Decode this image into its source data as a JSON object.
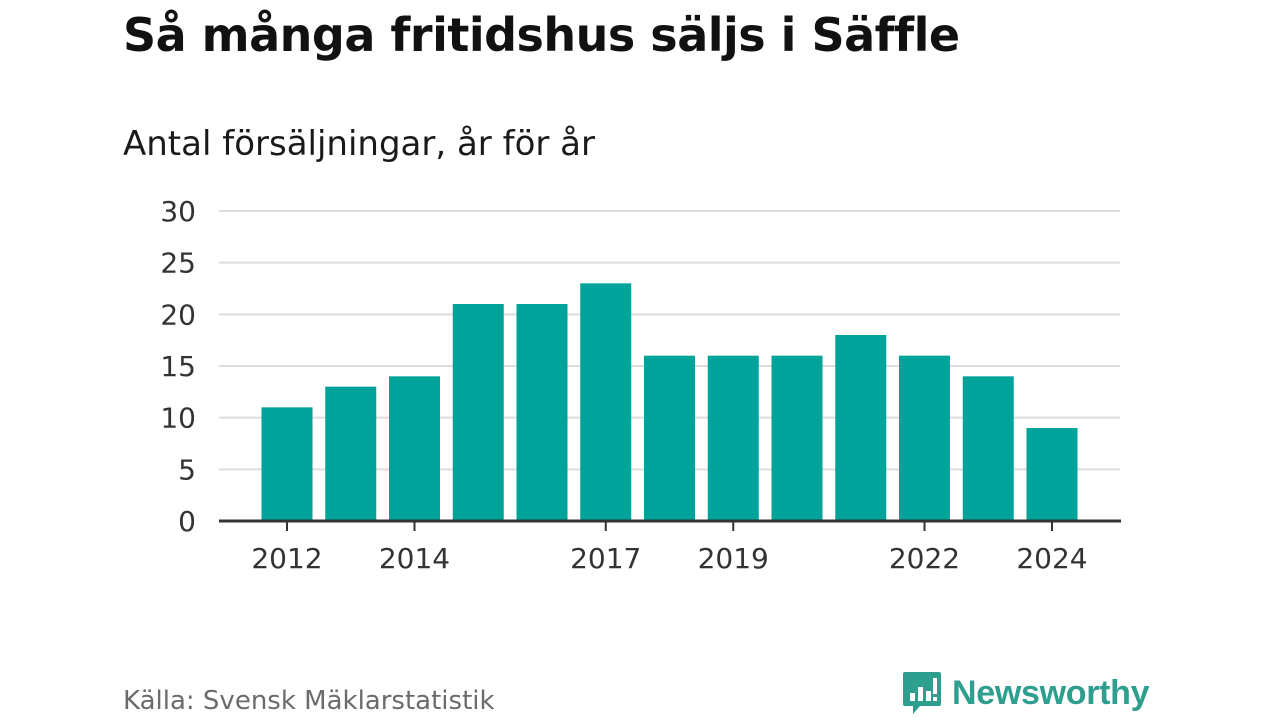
{
  "header": {
    "title": "Så många fritidshus säljs i Säffle",
    "subtitle": "Antal försäljningar, år för år"
  },
  "footer": {
    "source": "Källa: Svensk Mäklarstatistik",
    "brand_name": "Newsworthy",
    "brand_icon": "newsworthy-logo-icon"
  },
  "colors": {
    "bar": "#00a39a",
    "brand": "#2e9e8f",
    "grid": "#dddddd",
    "axis": "#333333",
    "tick_text": "#333333"
  },
  "chart_data": {
    "type": "bar",
    "title": "",
    "xlabel": "",
    "ylabel": "",
    "categories": [
      "2012",
      "2013",
      "2014",
      "2015",
      "2016",
      "2017",
      "2018",
      "2019",
      "2020",
      "2021",
      "2022",
      "2023",
      "2024"
    ],
    "values": [
      11,
      13,
      14,
      21,
      21,
      23,
      16,
      16,
      16,
      18,
      16,
      14,
      9
    ],
    "x_tick_labels": [
      "2012",
      "2014",
      "2017",
      "2019",
      "2022",
      "2024"
    ],
    "y_ticks": [
      0,
      5,
      10,
      15,
      20,
      25,
      30
    ],
    "ylim": [
      0,
      30
    ],
    "grid": true,
    "legend": "none"
  }
}
